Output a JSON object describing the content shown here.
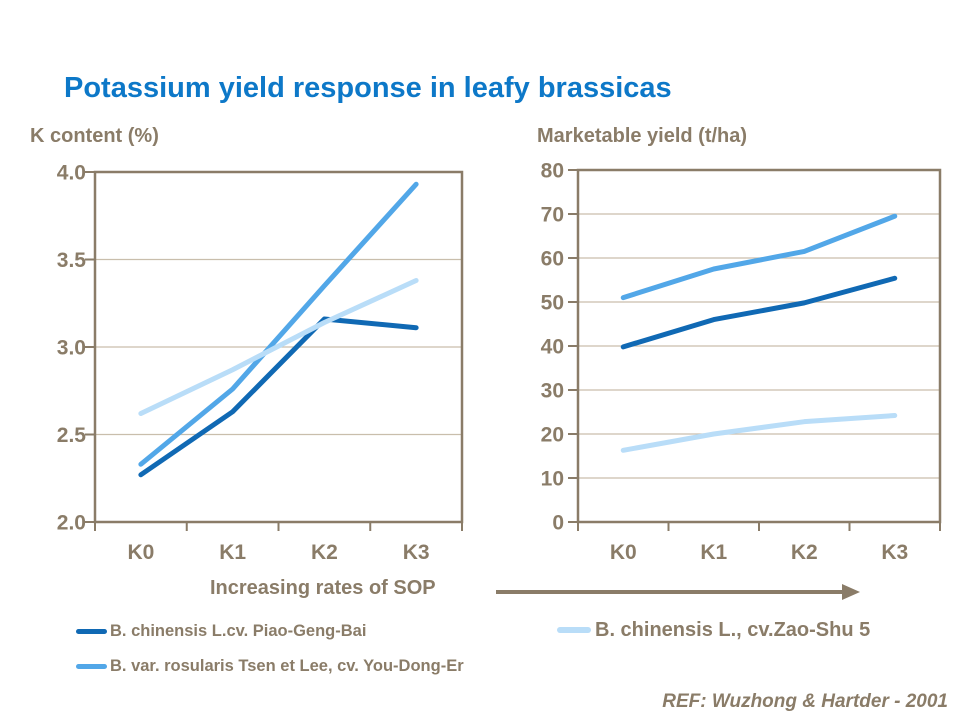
{
  "title": "Potassium yield response in leafy brassicas",
  "colors": {
    "title_blue": "#0D78C8",
    "taupe_text": "#8A7C68",
    "axis": "#8A7C68",
    "gridline": "#C9BEAC",
    "series_dark_blue": "#1069B4",
    "series_medium_blue": "#52A7E8",
    "series_pale_blue": "#B9DDF8"
  },
  "chart_data": [
    {
      "type": "line",
      "title": "K content (%)",
      "categories": [
        "K0",
        "K1",
        "K2",
        "K3"
      ],
      "xlabel": "Increasing rates of SOP",
      "ylabel": "K content (%)",
      "ylim": [
        2.0,
        4.0
      ],
      "ytick_labels": [
        "2.0",
        "2.5",
        "3.0",
        "3.5",
        "4.0"
      ],
      "grid": true,
      "legend_position": "below-left",
      "series": [
        {
          "name": "B. chinensis L.cv. Piao-Geng-Bai",
          "color": "#1069B4",
          "values": [
            2.27,
            2.63,
            3.16,
            3.11
          ]
        },
        {
          "name": "B. var. rosularis Tsen et Lee, cv. You-Dong-Er",
          "color": "#52A7E8",
          "values": [
            2.33,
            2.76,
            3.35,
            3.93
          ]
        },
        {
          "name": "B. chinensis L., cv.Zao-Shu 5",
          "color": "#B9DDF8",
          "values": [
            2.62,
            2.87,
            3.14,
            3.38
          ]
        }
      ]
    },
    {
      "type": "line",
      "title": "Marketable yield (t/ha)",
      "categories": [
        "K0",
        "K1",
        "K2",
        "K3"
      ],
      "xlabel": "Increasing rates of SOP",
      "ylabel": "Marketable yield (t/ha)",
      "ylim": [
        0,
        80
      ],
      "ytick_labels": [
        "0",
        "10",
        "20",
        "30",
        "40",
        "50",
        "60",
        "70",
        "80"
      ],
      "grid": true,
      "legend_position": "below-left",
      "series": [
        {
          "name": "B. chinensis L.cv. Piao-Geng-Bai",
          "color": "#1069B4",
          "values": [
            39.8,
            46.0,
            49.8,
            55.4
          ]
        },
        {
          "name": "B. var. rosularis Tsen et Lee, cv. You-Dong-Er",
          "color": "#52A7E8",
          "values": [
            51.0,
            57.5,
            61.5,
            69.5
          ]
        },
        {
          "name": "B. chinensis L., cv.Zao-Shu 5",
          "color": "#B9DDF8",
          "values": [
            16.3,
            20.0,
            22.8,
            24.2
          ]
        }
      ]
    }
  ],
  "legends": {
    "left": [
      {
        "label": "B. chinensis L.cv. Piao-Geng-Bai",
        "color": "#1069B4"
      },
      {
        "label": "B. var. rosularis Tsen et Lee, cv. You-Dong-Er",
        "color": "#52A7E8"
      }
    ],
    "right": [
      {
        "label": "B. chinensis L., cv.Zao-Shu 5",
        "color": "#B9DDF8"
      }
    ]
  },
  "sop_arrow_label": "Increasing rates of SOP",
  "reference": "REF: Wuzhong & Hartder - 2001"
}
